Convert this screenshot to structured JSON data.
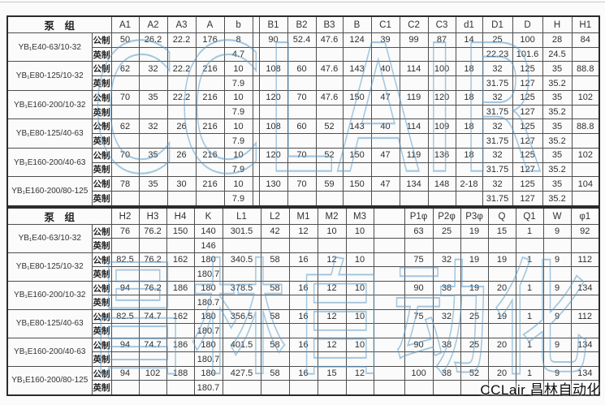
{
  "page": {
    "corner_brand": "CCLair 昌林自动化",
    "watermark_top": "CCLAIR",
    "watermark_bottom": "昌林自动化",
    "watermark_color": "#5e9ccb"
  },
  "unit_labels": {
    "metric": "公制",
    "imperial": "英制"
  },
  "tables": [
    {
      "title": "泵　组",
      "columns": [
        "A1",
        "A2",
        "A3",
        "A",
        "b",
        "",
        "B1",
        "B2",
        "B3",
        "B",
        "C1",
        "C2",
        "C3",
        "d1",
        "D1",
        "D",
        "H",
        "H1"
      ],
      "rows": [
        {
          "model": "YB₁E40-63/10-32",
          "metric": [
            "50",
            "26.2",
            "22.2",
            "176",
            "8",
            "",
            "90",
            "52.4",
            "47.6",
            "124",
            "39",
            "99",
            "87",
            "14",
            "25",
            "100",
            "28",
            "84"
          ],
          "imperial": [
            "",
            "",
            "",
            "",
            "4.7",
            "",
            "",
            "",
            "",
            "",
            "",
            "",
            "",
            "",
            "22.23",
            "101.6",
            "24.5",
            ""
          ]
        },
        {
          "model": "YB₁E80-125/10-32",
          "metric": [
            "62",
            "32",
            "22.2",
            "216",
            "10",
            "",
            "108",
            "60",
            "47.6",
            "143",
            "40",
            "114",
            "100",
            "18",
            "32",
            "125",
            "35",
            "88.8"
          ],
          "imperial": [
            "",
            "",
            "",
            "",
            "7.9",
            "",
            "",
            "",
            "",
            "",
            "",
            "",
            "",
            "",
            "31.75",
            "127",
            "35.2",
            ""
          ]
        },
        {
          "model": "YB₁E160-200/10-32",
          "metric": [
            "70",
            "35",
            "22.2",
            "216",
            "10",
            "",
            "120",
            "70",
            "47.6",
            "150",
            "47",
            "119",
            "120",
            "18",
            "32",
            "125",
            "35",
            "102"
          ],
          "imperial": [
            "",
            "",
            "",
            "",
            "7.9",
            "",
            "",
            "",
            "",
            "",
            "",
            "",
            "",
            "",
            "31.75",
            "127",
            "35.2",
            ""
          ]
        },
        {
          "model": "YB₁E80-125/40-63",
          "metric": [
            "62",
            "32",
            "26",
            "216",
            "10",
            "",
            "108",
            "60",
            "52",
            "143",
            "40",
            "114",
            "109",
            "18",
            "32",
            "125",
            "35",
            "88.8"
          ],
          "imperial": [
            "",
            "",
            "",
            "",
            "7.9",
            "",
            "",
            "",
            "",
            "",
            "",
            "",
            "",
            "",
            "31.75",
            "127",
            "35.2",
            ""
          ]
        },
        {
          "model": "YB₁E160-200/40-63",
          "metric": [
            "70",
            "35",
            "26",
            "216",
            "10",
            "",
            "120",
            "70",
            "52",
            "150",
            "47",
            "119",
            "136",
            "18",
            "32",
            "125",
            "35",
            "102"
          ],
          "imperial": [
            "",
            "",
            "",
            "",
            "7.9",
            "",
            "",
            "",
            "",
            "",
            "",
            "",
            "",
            "",
            "31.75",
            "127",
            "35.2",
            ""
          ]
        },
        {
          "model": "YB₁E160-200/80-125",
          "metric": [
            "78",
            "35",
            "30",
            "216",
            "10",
            "",
            "130",
            "70",
            "59",
            "150",
            "47",
            "134",
            "148",
            "2-18",
            "32",
            "125",
            "35",
            "104"
          ],
          "imperial": [
            "",
            "",
            "",
            "",
            "7.9",
            "",
            "",
            "",
            "",
            "",
            "",
            "",
            "",
            "",
            "31.75",
            "127",
            "35.2",
            ""
          ]
        }
      ]
    },
    {
      "title": "泵　组",
      "columns": [
        "H2",
        "H3",
        "H4",
        "K",
        "L1",
        "L2",
        "M1",
        "M2",
        "M3",
        "",
        "P1φ",
        "P2φ",
        "P3φ",
        "Q",
        "Q1",
        "W",
        "φ1"
      ],
      "rows": [
        {
          "model": "YB₁E40-63/10-32",
          "metric": [
            "76",
            "76.2",
            "150",
            "140",
            "301.5",
            "42",
            "12",
            "10",
            "10",
            "",
            "63",
            "25",
            "19",
            "15",
            "1",
            "9",
            "92"
          ],
          "imperial": [
            "",
            "",
            "",
            "146",
            "",
            "",
            "",
            "",
            "",
            "",
            "",
            "",
            "",
            "",
            "",
            "",
            ""
          ]
        },
        {
          "model": "YB₁E80-125/10-32",
          "metric": [
            "82.5",
            "76.2",
            "162",
            "180",
            "340.5",
            "58",
            "16",
            "12",
            "10",
            "",
            "75",
            "32",
            "19",
            "19",
            "1",
            "9",
            "112"
          ],
          "imperial": [
            "",
            "",
            "",
            "180.7",
            "",
            "",
            "",
            "",
            "",
            "",
            "",
            "",
            "",
            "",
            "",
            "",
            ""
          ]
        },
        {
          "model": "YB₁E160-200/10-32",
          "metric": [
            "94",
            "76.2",
            "186",
            "180",
            "378.5",
            "58",
            "16",
            "12",
            "10",
            "",
            "90",
            "38",
            "19",
            "20",
            "1",
            "9",
            "134"
          ],
          "imperial": [
            "",
            "",
            "",
            "180.7",
            "",
            "",
            "",
            "",
            "",
            "",
            "",
            "",
            "",
            "",
            "",
            "",
            ""
          ]
        },
        {
          "model": "YB₁E80-125/40-63",
          "metric": [
            "82.5",
            "74.7",
            "162",
            "180",
            "356.5",
            "58",
            "16",
            "12",
            "10",
            "",
            "75",
            "32",
            "25",
            "19",
            "1",
            "9",
            "112"
          ],
          "imperial": [
            "",
            "",
            "",
            "180.7",
            "",
            "",
            "",
            "",
            "",
            "",
            "",
            "",
            "",
            "",
            "",
            "",
            ""
          ]
        },
        {
          "model": "YB₁E160-200/40-63",
          "metric": [
            "94",
            "74.7",
            "186",
            "180",
            "401.5",
            "58",
            "16",
            "12",
            "10",
            "",
            "90",
            "38",
            "25",
            "20",
            "1",
            "9",
            "134"
          ],
          "imperial": [
            "",
            "",
            "",
            "180.7",
            "",
            "",
            "",
            "",
            "",
            "",
            "",
            "",
            "",
            "",
            "",
            "",
            ""
          ]
        },
        {
          "model": "YB₁E160-200/80-125",
          "metric": [
            "94",
            "102",
            "188",
            "180",
            "427.5",
            "58",
            "16",
            "15",
            "12",
            "",
            "100",
            "38",
            "52",
            "20",
            "1",
            "9",
            "134"
          ],
          "imperial": [
            "",
            "",
            "",
            "180.7",
            "",
            "",
            "",
            "",
            "",
            "",
            "",
            "",
            "",
            "",
            "",
            "",
            ""
          ]
        }
      ]
    }
  ]
}
